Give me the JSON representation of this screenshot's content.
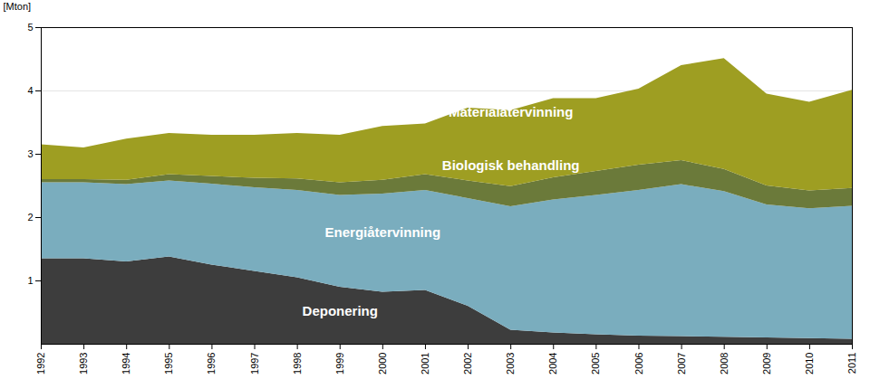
{
  "chart_data": {
    "type": "area",
    "stacked": true,
    "x": [
      1992,
      1993,
      1994,
      1995,
      1996,
      1997,
      1998,
      1999,
      2000,
      2001,
      2002,
      2003,
      2004,
      2005,
      2006,
      2007,
      2008,
      2009,
      2010,
      2011
    ],
    "series": [
      {
        "name": "Deponering",
        "color": "#3d3d3d",
        "values": [
          1.35,
          1.35,
          1.3,
          1.38,
          1.25,
          1.15,
          1.05,
          0.9,
          0.82,
          0.85,
          0.6,
          0.22,
          0.18,
          0.15,
          0.13,
          0.12,
          0.11,
          0.1,
          0.09,
          0.08
        ]
      },
      {
        "name": "Energiåtervinning",
        "color": "#7aadbe",
        "values": [
          1.2,
          1.2,
          1.22,
          1.2,
          1.28,
          1.32,
          1.38,
          1.45,
          1.55,
          1.58,
          1.7,
          1.95,
          2.1,
          2.2,
          2.3,
          2.4,
          2.3,
          2.1,
          2.05,
          2.1
        ]
      },
      {
        "name": "Biologisk behandling",
        "color": "#6b7a3a",
        "values": [
          0.05,
          0.05,
          0.07,
          0.1,
          0.12,
          0.15,
          0.18,
          0.2,
          0.22,
          0.25,
          0.28,
          0.32,
          0.35,
          0.38,
          0.4,
          0.38,
          0.35,
          0.3,
          0.28,
          0.28
        ]
      },
      {
        "name": "Materialåtervinning",
        "color": "#9e9e22",
        "values": [
          0.55,
          0.5,
          0.65,
          0.65,
          0.65,
          0.68,
          0.72,
          0.75,
          0.85,
          0.8,
          1.15,
          1.2,
          1.25,
          1.15,
          1.2,
          1.5,
          1.75,
          1.45,
          1.4,
          1.55
        ]
      }
    ],
    "ylabel": "[Mton]",
    "xlim": [
      1992,
      2011
    ],
    "xticks": [
      1992,
      1993,
      1994,
      1995,
      1996,
      1997,
      1998,
      1999,
      2000,
      2001,
      2002,
      2003,
      2004,
      2005,
      2006,
      2007,
      2008,
      2009,
      2010,
      2011
    ],
    "ylim": [
      0,
      5
    ],
    "yticks": [
      1,
      2,
      3,
      4,
      5
    ],
    "grid": true,
    "annotations": [
      {
        "text": "Materialåtervinning",
        "x": 2003,
        "y": 3.6
      },
      {
        "text": "Biologisk behandling",
        "x": 2003,
        "y": 2.75
      },
      {
        "text": "Energiåtervinning",
        "x": 2000,
        "y": 1.7
      },
      {
        "text": "Deponering",
        "x": 1999,
        "y": 0.45
      }
    ]
  }
}
